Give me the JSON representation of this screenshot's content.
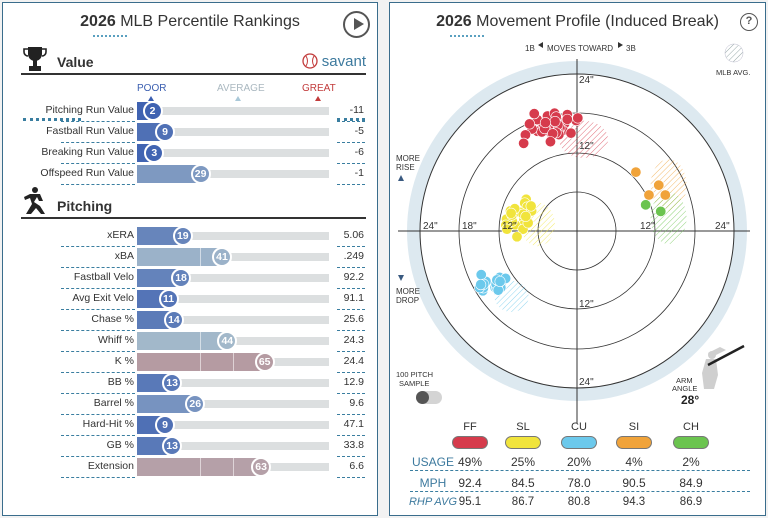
{
  "percentile": {
    "year": "2026",
    "title": "MLB Percentile Rankings",
    "brand": "savant",
    "scale": {
      "poor": "POOR",
      "average": "AVERAGE",
      "great": "GREAT"
    },
    "colors": {
      "poor": "#3a5eb0",
      "average": "#aac8d8",
      "great": "#c23b3b"
    },
    "value_section": {
      "label": "Value",
      "rows": [
        {
          "label": "Pitching Run Value",
          "pct": 2,
          "value": "-11",
          "selected": true
        },
        {
          "label": "Fastball Run Value",
          "pct": 9,
          "value": "-5"
        },
        {
          "label": "Breaking Run Value",
          "pct": 3,
          "value": "-6"
        },
        {
          "label": "Offspeed Run Value",
          "pct": 29,
          "value": "-1"
        }
      ]
    },
    "pitching_section": {
      "label": "Pitching",
      "rows": [
        {
          "label": "xERA",
          "pct": 19,
          "value": "5.06"
        },
        {
          "label": "xBA",
          "pct": 41,
          "value": ".249"
        },
        {
          "label": "Fastball Velo",
          "pct": 18,
          "value": "92.2"
        },
        {
          "label": "Avg Exit Velo",
          "pct": 11,
          "value": "91.1"
        },
        {
          "label": "Chase %",
          "pct": 14,
          "value": "25.6"
        },
        {
          "label": "Whiff %",
          "pct": 44,
          "value": "24.3"
        },
        {
          "label": "K %",
          "pct": 65,
          "value": "24.4"
        },
        {
          "label": "BB %",
          "pct": 13,
          "value": "12.9"
        },
        {
          "label": "Barrel %",
          "pct": 26,
          "value": "9.6"
        },
        {
          "label": "Hard-Hit %",
          "pct": 9,
          "value": "47.1"
        },
        {
          "label": "GB %",
          "pct": 13,
          "value": "33.8"
        },
        {
          "label": "Extension",
          "pct": 63,
          "value": "6.6"
        }
      ]
    }
  },
  "movement": {
    "year": "2026",
    "title": "Movement Profile (Induced Break)",
    "help": "?",
    "direction_left": "1B",
    "direction_mid": "MOVES TOWARD",
    "direction_right": "3B",
    "mlb_avg_label": "MLB AVG.",
    "more_rise": "MORE RISE",
    "more_drop": "MORE DROP",
    "sample_label": "100 PITCH SAMPLE",
    "arm_angle_label": "ARM ANGLE",
    "arm_angle": "28°",
    "ring_labels": [
      "12\"",
      "12\"",
      "18\"",
      "12\"",
      "24\"",
      "24\"",
      "24\"",
      "24\"",
      "12\""
    ],
    "pitches": [
      {
        "code": "FF",
        "color": "#d63b4c",
        "usage": "49%",
        "mph": "92.4",
        "rhp_avg": "95.1",
        "center": [
          -4,
          16
        ],
        "avg": [
          1,
          14
        ],
        "n": 45,
        "spread": [
          5,
          3
        ]
      },
      {
        "code": "SL",
        "color": "#f1e43c",
        "usage": "25%",
        "mph": "84.5",
        "rhp_avg": "86.7",
        "center": [
          -9,
          2
        ],
        "avg": [
          -6,
          1
        ],
        "n": 25,
        "spread": [
          3.5,
          3.5
        ]
      },
      {
        "code": "CU",
        "color": "#6cc9ec",
        "usage": "20%",
        "mph": "78.0",
        "rhp_avg": "80.8",
        "center": [
          -13,
          -8
        ],
        "avg": [
          -10,
          -10
        ],
        "n": 20,
        "spread": [
          3.5,
          2.5
        ]
      },
      {
        "code": "SI",
        "color": "#f0a33a",
        "usage": "4%",
        "mph": "90.5",
        "rhp_avg": "94.3",
        "center": [
          11,
          6
        ],
        "avg": [
          14,
          7
        ],
        "n": 4,
        "spread": [
          2,
          3
        ]
      },
      {
        "code": "CH",
        "color": "#6bc44f",
        "usage": "2%",
        "mph": "84.9",
        "rhp_avg": "86.9",
        "center": [
          11,
          3
        ],
        "avg": [
          14,
          2
        ],
        "n": 2,
        "spread": [
          2,
          1
        ]
      }
    ],
    "table_labels": {
      "usage": "USAGE",
      "mph": "MPH",
      "rhp_avg": "RHP AVG"
    }
  }
}
